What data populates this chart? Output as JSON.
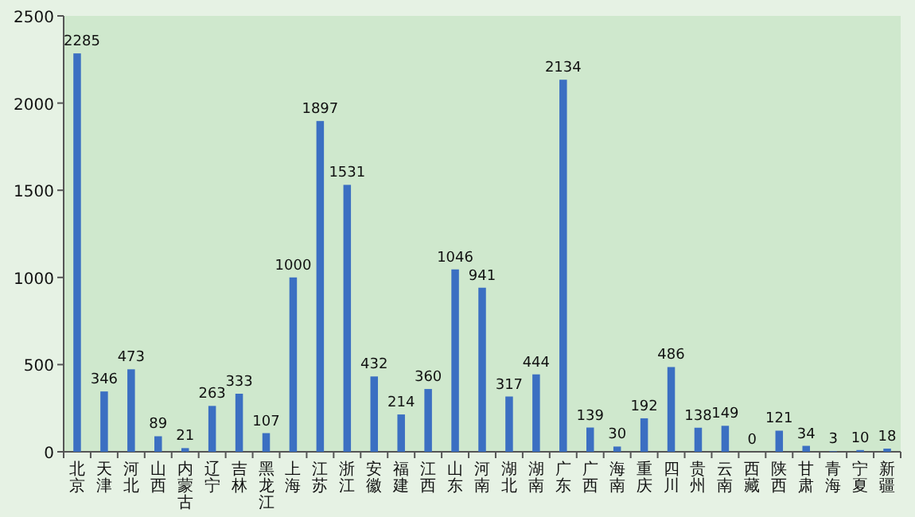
{
  "chart_data": {
    "type": "bar",
    "categories": [
      "北京",
      "天津",
      "河北",
      "山西",
      "内蒙古",
      "辽宁",
      "吉林",
      "黑龙江",
      "上海",
      "江苏",
      "浙江",
      "安徽",
      "福建",
      "江西",
      "山东",
      "河南",
      "湖北",
      "湖南",
      "广东",
      "广西",
      "海南",
      "重庆",
      "四川",
      "贵州",
      "云南",
      "西藏",
      "陕西",
      "甘肃",
      "青海",
      "宁夏",
      "新疆"
    ],
    "values": [
      2285,
      346,
      473,
      89,
      21,
      263,
      333,
      107,
      1000,
      1897,
      1531,
      432,
      214,
      360,
      1046,
      941,
      317,
      444,
      2134,
      139,
      30,
      192,
      486,
      138,
      149,
      0,
      121,
      34,
      3,
      10,
      18
    ],
    "color": "#3b6fc2",
    "ylim": [
      0,
      2500
    ],
    "yticks": [
      0,
      500,
      1000,
      1500,
      2000,
      2500
    ],
    "data_labels": true,
    "grid": false
  }
}
